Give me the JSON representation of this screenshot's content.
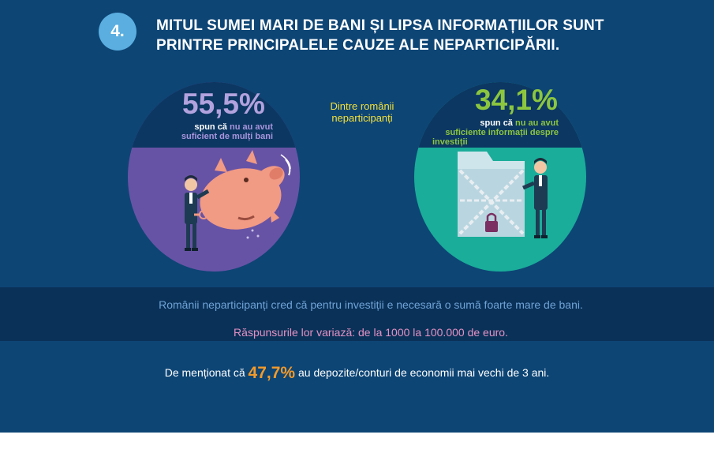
{
  "header": {
    "number": "4.",
    "title_line1": "MITUL SUMEI MARI DE BANI ȘI LIPSA INFORMAȚIILOR SUNT",
    "title_line2": "PRINTRE PRINCIPALELE CAUZE ALE NEPARTICIPĂRII."
  },
  "left_stat": {
    "percent": "55,5%",
    "text_prefix": "spun că ",
    "text_highlight_1": "nu au avut",
    "text_highlight_2": "suficient de mulți bani"
  },
  "middle_label": {
    "line1": "Dintre românii",
    "line2": "neparticipanți"
  },
  "right_stat": {
    "percent": "34,1%",
    "text_prefix": "spun că ",
    "text_highlight_1": "nu au avut",
    "text_line2": "suficiente informații despre",
    "text_line3": "investiții"
  },
  "band": {
    "line1": "Românii neparticipanți cred că pentru investiții e necesară o sumă foarte mare de bani.",
    "line2": "Răspunsurile lor variază: de la 1000 la 100.000 de euro."
  },
  "note": {
    "prefix": "De menționat că ",
    "value": "47,7%",
    "suffix": " au depozite/conturi de economii mai vechi de 3 ani."
  },
  "colors": {
    "background": "#0d4575",
    "number_circle": "#5aaee0",
    "left_circle": "#6753a5",
    "right_circle": "#1aad9a",
    "left_percent": "#b2a2dd",
    "right_percent": "#8cc63f",
    "middle_label": "#f3e03b",
    "band_text": "#6fa3d7",
    "band_text_pink": "#e592c3",
    "accent": "#f39a2a"
  },
  "icons": [
    "piggy-bank-illustration",
    "locked-folder-illustration",
    "businessman-figure",
    "padlock-icon"
  ]
}
